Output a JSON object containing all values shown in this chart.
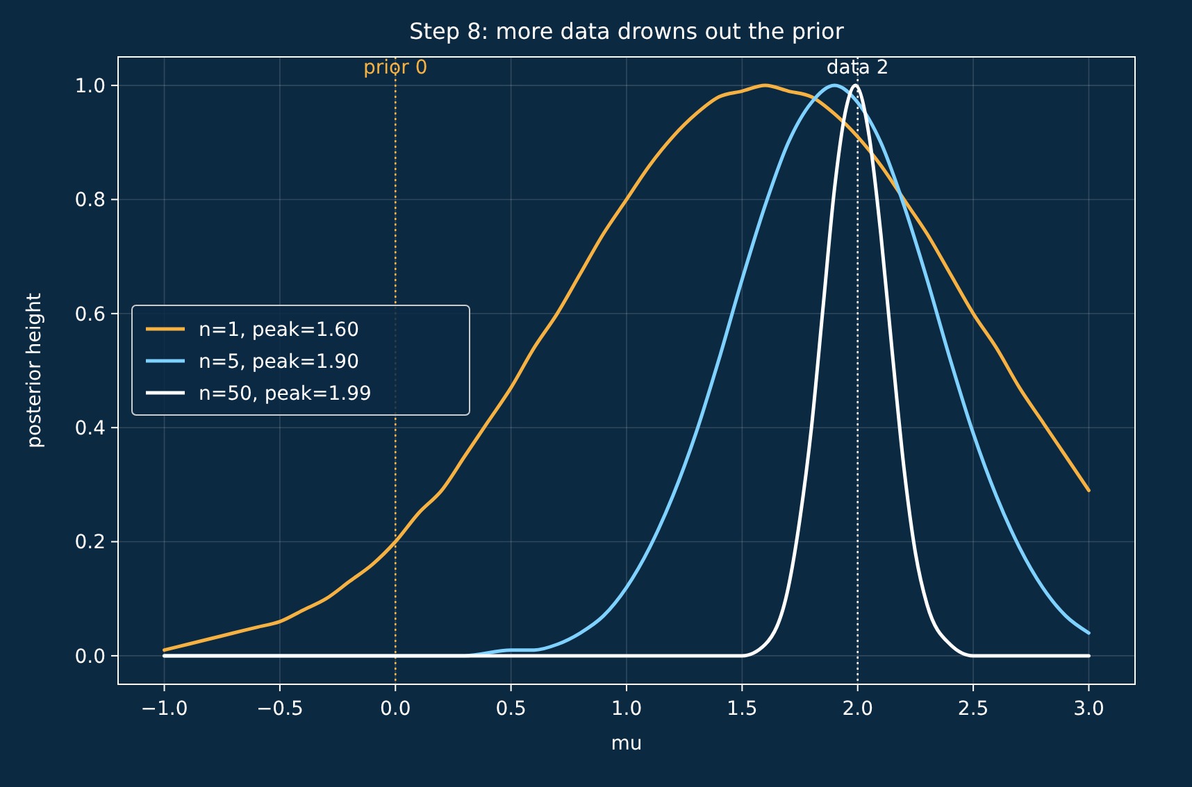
{
  "chart_data": {
    "type": "line",
    "title": "Step 8: more data drowns out the prior",
    "xlabel": "mu",
    "ylabel": "posterior height",
    "xlim": [
      -1.2,
      3.2
    ],
    "ylim": [
      -0.05,
      1.05
    ],
    "xticks": [
      {
        "value": -1,
        "label": "−1.0"
      },
      {
        "value": -0.5,
        "label": "−0.5"
      },
      {
        "value": 0,
        "label": "0.0"
      },
      {
        "value": 0.5,
        "label": "0.5"
      },
      {
        "value": 1,
        "label": "1.0"
      },
      {
        "value": 1.5,
        "label": "1.5"
      },
      {
        "value": 2,
        "label": "2.0"
      },
      {
        "value": 2.5,
        "label": "2.5"
      },
      {
        "value": 3,
        "label": "3.0"
      }
    ],
    "yticks": [
      {
        "value": 0,
        "label": "0.0"
      },
      {
        "value": 0.2,
        "label": "0.2"
      },
      {
        "value": 0.4,
        "label": "0.4"
      },
      {
        "value": 0.6,
        "label": "0.6"
      },
      {
        "value": 0.8,
        "label": "0.8"
      },
      {
        "value": 1,
        "label": "1.0"
      }
    ],
    "grid": true,
    "legend": "left",
    "line_style": "solid",
    "series": [
      {
        "name": "n=1, peak=1.60",
        "color": "#f6b143",
        "x": [
          -1,
          -0.9,
          -0.8,
          -0.7,
          -0.6,
          -0.5,
          -0.4,
          -0.3,
          -0.2,
          -0.1,
          0,
          0.1,
          0.2,
          0.3,
          0.4,
          0.5,
          0.6,
          0.7,
          0.8,
          0.9,
          1,
          1.1,
          1.2,
          1.3,
          1.4,
          1.5,
          1.6,
          1.7,
          1.8,
          1.9,
          2,
          2.1,
          2.2,
          2.3,
          2.4,
          2.5,
          2.6,
          2.7,
          2.8,
          2.9,
          3
        ],
        "values": [
          0.01,
          0.02,
          0.03,
          0.04,
          0.05,
          0.06,
          0.08,
          0.1,
          0.13,
          0.16,
          0.2,
          0.25,
          0.29,
          0.35,
          0.41,
          0.47,
          0.54,
          0.6,
          0.67,
          0.74,
          0.8,
          0.86,
          0.91,
          0.95,
          0.98,
          0.99,
          1,
          0.99,
          0.98,
          0.95,
          0.91,
          0.86,
          0.8,
          0.74,
          0.67,
          0.6,
          0.54,
          0.47,
          0.41,
          0.35,
          0.29
        ]
      },
      {
        "name": "n=5, peak=1.90",
        "color": "#7fd1ff",
        "x": [
          -1,
          0,
          0.3,
          0.5,
          0.6,
          0.7,
          0.8,
          0.9,
          1,
          1.1,
          1.2,
          1.3,
          1.4,
          1.5,
          1.6,
          1.7,
          1.8,
          1.9,
          2,
          2.1,
          2.2,
          2.3,
          2.4,
          2.5,
          2.6,
          2.7,
          2.8,
          2.9,
          3
        ],
        "values": [
          0,
          0,
          0,
          0.01,
          0.01,
          0.02,
          0.04,
          0.07,
          0.12,
          0.19,
          0.28,
          0.39,
          0.52,
          0.66,
          0.79,
          0.9,
          0.97,
          1,
          0.97,
          0.9,
          0.79,
          0.66,
          0.52,
          0.39,
          0.28,
          0.19,
          0.12,
          0.07,
          0.04
        ]
      },
      {
        "name": "n=50, peak=1.99",
        "color": "#ffffff",
        "x": [
          -1,
          1.5,
          1.6,
          1.7,
          1.75,
          1.8,
          1.85,
          1.9,
          1.95,
          1.99,
          2.05,
          2.1,
          2.15,
          2.2,
          2.25,
          2.3,
          2.4,
          2.5,
          3
        ],
        "values": [
          0,
          0,
          0.02,
          0.12,
          0.24,
          0.4,
          0.61,
          0.82,
          0.96,
          1,
          0.91,
          0.74,
          0.53,
          0.33,
          0.18,
          0.09,
          0.02,
          0,
          0
        ]
      }
    ],
    "ref_lines": [
      {
        "axis": "x",
        "value": 0,
        "label": "prior 0",
        "color": "#f6b143",
        "line_style": "dotted"
      },
      {
        "axis": "x",
        "value": 2,
        "label": "data 2",
        "color": "#ffffff",
        "line_style": "dotted"
      }
    ]
  }
}
